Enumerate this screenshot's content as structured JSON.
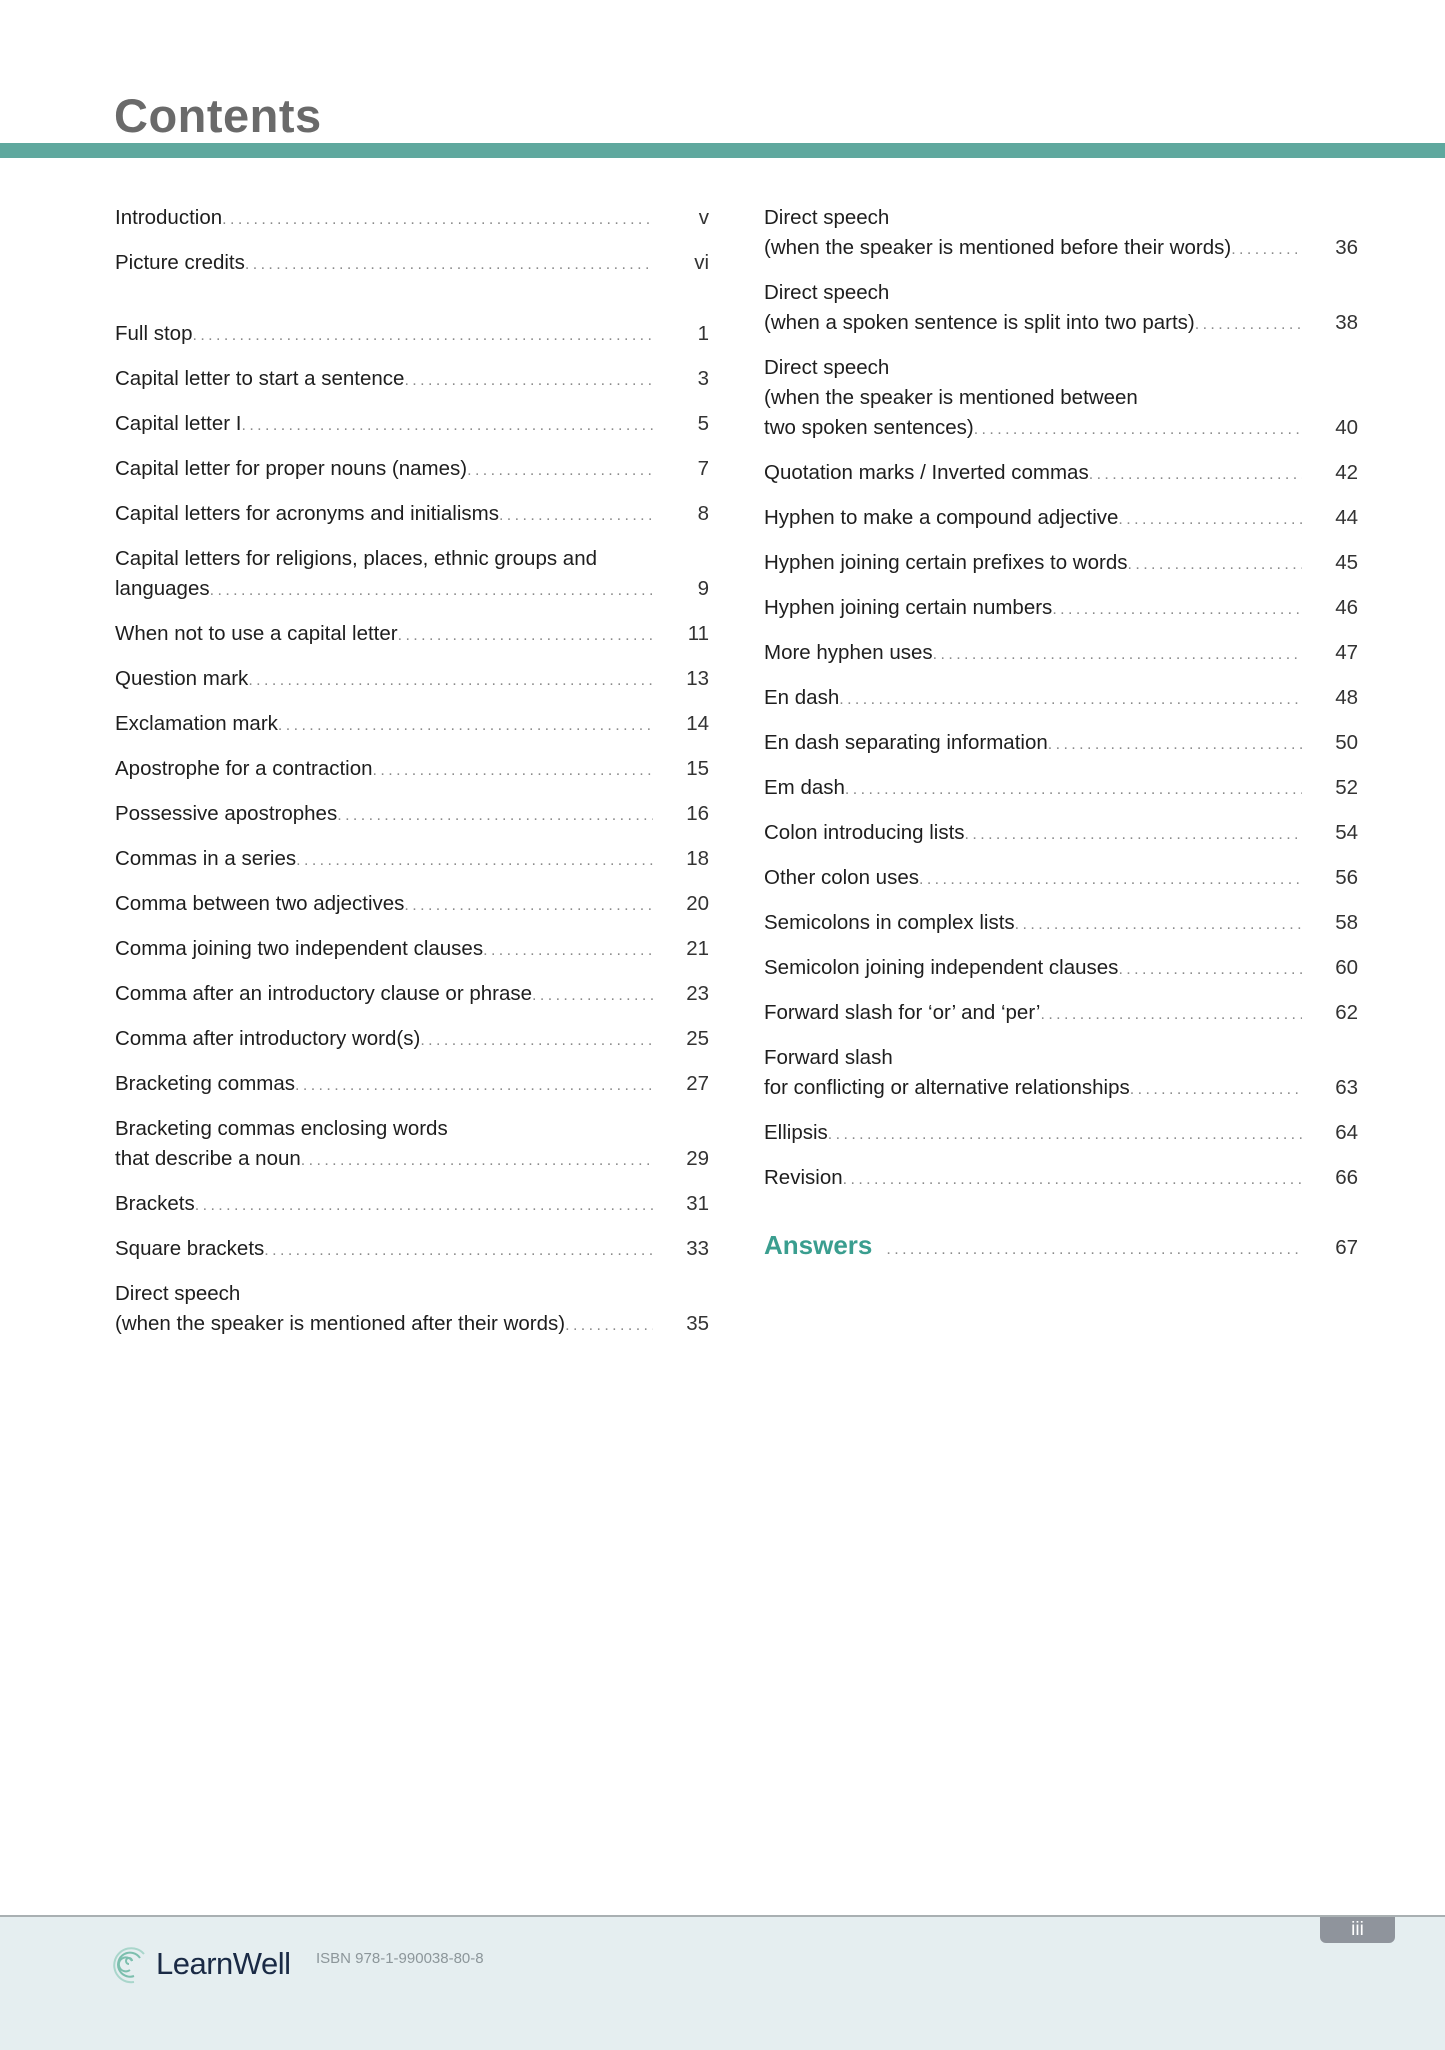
{
  "header": {
    "title": "Contents"
  },
  "colors": {
    "accent": "#5fa89e",
    "answers": "#3a9e8f",
    "footer_bg": "#e5eef0"
  },
  "left_entries": [
    {
      "lines": [
        "Introduction"
      ],
      "page": "v"
    },
    {
      "lines": [
        "Picture credits"
      ],
      "page": "vi"
    },
    {
      "lines": [
        "Full stop"
      ],
      "page": "1"
    },
    {
      "lines": [
        "Capital letter to start a sentence"
      ],
      "page": "3"
    },
    {
      "lines": [
        "Capital letter I"
      ],
      "page": "5"
    },
    {
      "lines": [
        "Capital letter for proper nouns (names)"
      ],
      "page": "7"
    },
    {
      "lines": [
        "Capital letters for acronyms and initialisms"
      ],
      "page": "8"
    },
    {
      "lines": [
        "Capital letters for religions, places, ethnic groups and",
        "languages"
      ],
      "page": "9"
    },
    {
      "lines": [
        "When not to use a capital letter"
      ],
      "page": "11"
    },
    {
      "lines": [
        "Question mark"
      ],
      "page": "13"
    },
    {
      "lines": [
        "Exclamation mark"
      ],
      "page": "14"
    },
    {
      "lines": [
        "Apostrophe for a contraction"
      ],
      "page": "15"
    },
    {
      "lines": [
        "Possessive apostrophes"
      ],
      "page": "16"
    },
    {
      "lines": [
        "Commas in a series"
      ],
      "page": "18"
    },
    {
      "lines": [
        "Comma between two adjectives"
      ],
      "page": "20"
    },
    {
      "lines": [
        "Comma joining two independent clauses"
      ],
      "page": "21"
    },
    {
      "lines": [
        "Comma after an introductory clause or phrase"
      ],
      "page": "23"
    },
    {
      "lines": [
        "Comma after introductory word(s)"
      ],
      "page": "25"
    },
    {
      "lines": [
        "Bracketing commas"
      ],
      "page": "27"
    },
    {
      "lines": [
        "Bracketing commas enclosing words",
        "that describe a noun"
      ],
      "page": "29"
    },
    {
      "lines": [
        "Brackets"
      ],
      "page": "31"
    },
    {
      "lines": [
        "Square brackets"
      ],
      "page": "33"
    },
    {
      "lines": [
        "Direct speech",
        "(when the speaker is mentioned after their words)"
      ],
      "page": "35"
    }
  ],
  "right_entries": [
    {
      "lines": [
        "Direct speech",
        "(when the speaker is mentioned before their words)"
      ],
      "page": "36"
    },
    {
      "lines": [
        "Direct speech",
        "(when a spoken sentence is split into two parts)"
      ],
      "page": "38"
    },
    {
      "lines": [
        "Direct speech",
        "(when the speaker is mentioned between",
        "two spoken sentences)"
      ],
      "page": "40"
    },
    {
      "lines": [
        "Quotation marks / Inverted commas"
      ],
      "page": "42"
    },
    {
      "lines": [
        "Hyphen to make a compound adjective"
      ],
      "page": "44"
    },
    {
      "lines": [
        "Hyphen joining certain prefixes to words"
      ],
      "page": "45"
    },
    {
      "lines": [
        "Hyphen joining certain numbers"
      ],
      "page": "46"
    },
    {
      "lines": [
        "More hyphen uses"
      ],
      "page": "47"
    },
    {
      "lines": [
        "En dash"
      ],
      "page": "48"
    },
    {
      "lines": [
        "En dash separating information"
      ],
      "page": "50"
    },
    {
      "lines": [
        "Em dash"
      ],
      "page": "52"
    },
    {
      "lines": [
        "Colon introducing lists"
      ],
      "page": "54"
    },
    {
      "lines": [
        "Other colon uses"
      ],
      "page": "56"
    },
    {
      "lines": [
        "Semicolons in complex lists"
      ],
      "page": "58"
    },
    {
      "lines": [
        "Semicolon joining independent clauses"
      ],
      "page": "60"
    },
    {
      "lines": [
        "Forward slash for ‘or’ and ‘per’"
      ],
      "page": "62"
    },
    {
      "lines": [
        "Forward slash",
        "for conflicting or alternative relationships"
      ],
      "page": "63"
    },
    {
      "lines": [
        "Ellipsis"
      ],
      "page": "64"
    },
    {
      "lines": [
        "Revision"
      ],
      "page": "66"
    },
    {
      "lines": [
        "Answers"
      ],
      "page": "67"
    }
  ],
  "footer": {
    "logo_text": "LearnWell",
    "isbn": "ISBN 978-1-990038-80-8",
    "page_number": "iii"
  }
}
